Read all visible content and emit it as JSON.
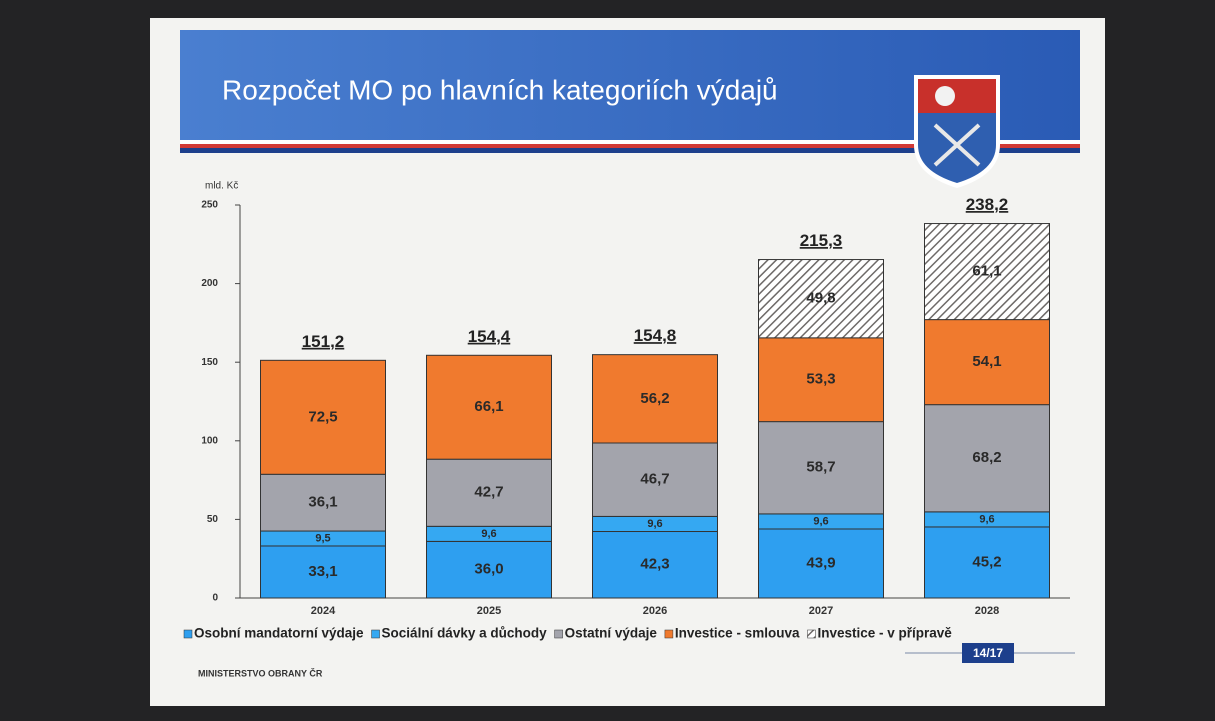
{
  "chart_data": {
    "type": "stacked-bar",
    "title": "Rozpočet MO po hlavních kategoriích výdajů",
    "y_label": "mld. Kč",
    "footer": "MINISTERSTVO OBRANY ČR",
    "page": "14/17",
    "categories": [
      "2024",
      "2025",
      "2026",
      "2027",
      "2028"
    ],
    "series": [
      {
        "name": "Osobní mandatorní výdaje",
        "color": "#2e9ff0",
        "values": [
          33.1,
          36.0,
          42.3,
          43.9,
          45.2
        ],
        "value_labels": [
          "33,1",
          "36,0",
          "42,3",
          "43,9",
          "45,2"
        ]
      },
      {
        "name": "Sociální dávky a důchody",
        "color": "#35a8f2",
        "values": [
          9.5,
          9.6,
          9.6,
          9.6,
          9.6
        ],
        "value_labels": [
          "9,5",
          "9,6",
          "9,6",
          "9,6",
          "9,6"
        ]
      },
      {
        "name": "Ostatní výdaje",
        "color": "#a3a4ac",
        "values": [
          36.1,
          42.7,
          46.7,
          58.7,
          68.2
        ],
        "value_labels": [
          "36,1",
          "42,7",
          "46,7",
          "58,7",
          "68,2"
        ]
      },
      {
        "name": "Investice - smlouva",
        "color": "#f07a2e",
        "values": [
          72.5,
          66.1,
          56.2,
          53.3,
          54.1
        ],
        "value_labels": [
          "72,5",
          "66,1",
          "56,2",
          "53,3",
          "54,1"
        ]
      },
      {
        "name": "Investice - v přípravě",
        "color": "#6e6a68",
        "hatch": true,
        "values": [
          null,
          null,
          null,
          49.8,
          61.1
        ],
        "value_labels": [
          null,
          null,
          null,
          "49,8",
          "61,1"
        ]
      }
    ],
    "totals": {
      "values": [
        151.2,
        154.4,
        154.8,
        215.3,
        238.2
      ],
      "value_labels": [
        "151,2",
        "154,4",
        "154,8",
        "215,3",
        "238,2"
      ]
    },
    "ylim": [
      0,
      250
    ],
    "yticks": [
      0,
      50,
      100,
      150,
      200,
      250
    ]
  }
}
